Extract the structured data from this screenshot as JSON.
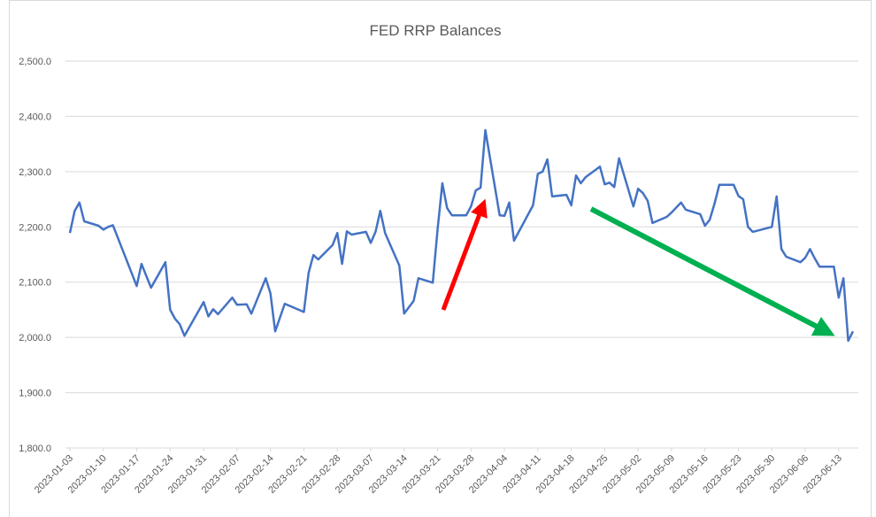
{
  "chart_data": {
    "type": "line",
    "title": "FED RRP Balances",
    "color": "#4472c4",
    "grid": true,
    "x": [
      "2023-01-03",
      "2023-01-04",
      "2023-01-05",
      "2023-01-06",
      "2023-01-09",
      "2023-01-10",
      "2023-01-11",
      "2023-01-12",
      "2023-01-17",
      "2023-01-18",
      "2023-01-20",
      "2023-01-23",
      "2023-01-24",
      "2023-01-25",
      "2023-01-26",
      "2023-01-27",
      "2023-01-31",
      "2023-02-01",
      "2023-02-02",
      "2023-02-03",
      "2023-02-06",
      "2023-02-07",
      "2023-02-09",
      "2023-02-10",
      "2023-02-13",
      "2023-02-14",
      "2023-02-15",
      "2023-02-17",
      "2023-02-21",
      "2023-02-22",
      "2023-02-23",
      "2023-02-24",
      "2023-02-27",
      "2023-02-28",
      "2023-03-01",
      "2023-03-02",
      "2023-03-03",
      "2023-03-06",
      "2023-03-07",
      "2023-03-08",
      "2023-03-09",
      "2023-03-10",
      "2023-03-13",
      "2023-03-14",
      "2023-03-16",
      "2023-03-17",
      "2023-03-20",
      "2023-03-21",
      "2023-03-22",
      "2023-03-23",
      "2023-03-24",
      "2023-03-27",
      "2023-03-28",
      "2023-03-29",
      "2023-03-30",
      "2023-03-31",
      "2023-04-03",
      "2023-04-04",
      "2023-04-05",
      "2023-04-06",
      "2023-04-10",
      "2023-04-11",
      "2023-04-12",
      "2023-04-13",
      "2023-04-14",
      "2023-04-17",
      "2023-04-18",
      "2023-04-19",
      "2023-04-20",
      "2023-04-21",
      "2023-04-24",
      "2023-04-25",
      "2023-04-26",
      "2023-04-27",
      "2023-04-28",
      "2023-05-01",
      "2023-05-02",
      "2023-05-03",
      "2023-05-04",
      "2023-05-05",
      "2023-05-08",
      "2023-05-09",
      "2023-05-11",
      "2023-05-12",
      "2023-05-15",
      "2023-05-16",
      "2023-05-17",
      "2023-05-18",
      "2023-05-19",
      "2023-05-22",
      "2023-05-23",
      "2023-05-24",
      "2023-05-25",
      "2023-05-26",
      "2023-05-30",
      "2023-05-31",
      "2023-06-01",
      "2023-06-02",
      "2023-06-05",
      "2023-06-06",
      "2023-06-07",
      "2023-06-08",
      "2023-06-09",
      "2023-06-12",
      "2023-06-13",
      "2023-06-14",
      "2023-06-15",
      "2023-06-16"
    ],
    "values": [
      2189,
      2229,
      2244,
      2210,
      2202,
      2195,
      2200,
      2203,
      2093,
      2133,
      2090,
      2136,
      2050,
      2034,
      2024,
      2003,
      2064,
      2038,
      2051,
      2042,
      2072,
      2059,
      2060,
      2043,
      2107,
      2080,
      2011,
      2061,
      2046,
      2117,
      2149,
      2141,
      2167,
      2189,
      2133,
      2192,
      2186,
      2191,
      2171,
      2191,
      2229,
      2189,
      2130,
      2043,
      2066,
      2107,
      2099,
      2195,
      2279,
      2234,
      2221,
      2221,
      2237,
      2266,
      2271,
      2375,
      2221,
      2220,
      2244,
      2175,
      2239,
      2296,
      2300,
      2322,
      2255,
      2258,
      2239,
      2293,
      2279,
      2290,
      2309,
      2277,
      2280,
      2272,
      2324,
      2237,
      2269,
      2261,
      2247,
      2207,
      2218,
      2226,
      2244,
      2231,
      2223,
      2202,
      2213,
      2242,
      2276,
      2276,
      2256,
      2250,
      2200,
      2191,
      2200,
      2255,
      2160,
      2146,
      2136,
      2144,
      2160,
      2143,
      2128,
      2128,
      2072,
      2107,
      1994,
      2011
    ],
    "xlim": [
      "2023-01-03",
      "2023-06-16"
    ],
    "xticks": [
      "2023-01-03",
      "2023-01-10",
      "2023-01-17",
      "2023-01-24",
      "2023-01-31",
      "2023-02-07",
      "2023-02-14",
      "2023-02-21",
      "2023-02-28",
      "2023-03-07",
      "2023-03-14",
      "2023-03-21",
      "2023-03-28",
      "2023-04-04",
      "2023-04-11",
      "2023-04-18",
      "2023-04-25",
      "2023-05-02",
      "2023-05-09",
      "2023-05-16",
      "2023-05-23",
      "2023-05-30",
      "2023-06-06",
      "2023-06-13"
    ],
    "ylim": [
      1800,
      2500
    ],
    "yticks": [
      {
        "value": 1800,
        "label": "1,800.0"
      },
      {
        "value": 1900,
        "label": "1,900.0"
      },
      {
        "value": 2000,
        "label": "2,000.0"
      },
      {
        "value": 2100,
        "label": "2,100.0"
      },
      {
        "value": 2200,
        "label": "2,200.0"
      },
      {
        "value": 2300,
        "label": "2,300.0"
      },
      {
        "value": 2400,
        "label": "2,400.0"
      },
      {
        "value": 2500,
        "label": "2,500.0"
      }
    ]
  }
}
